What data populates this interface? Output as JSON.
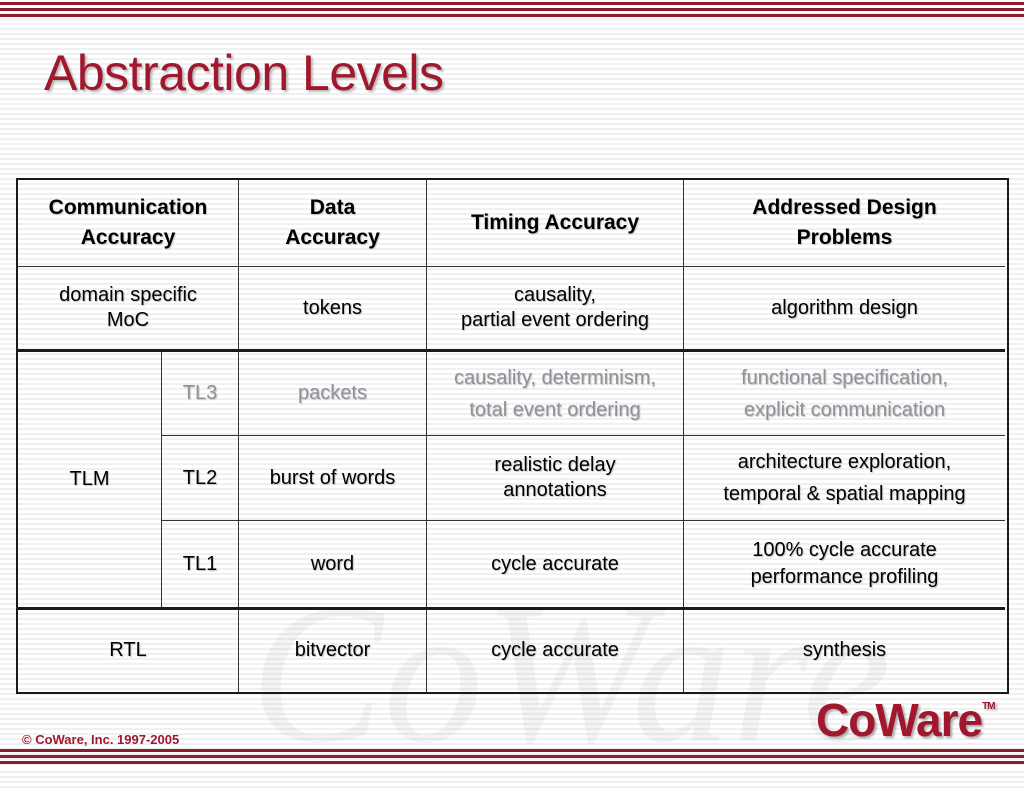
{
  "slide": {
    "title": "Abstraction Levels",
    "copyright": "© CoWare, Inc. 1997-2005",
    "logo": "CoWare",
    "logo_tm": "TM"
  },
  "table": {
    "headers": {
      "communication": "Communication Accuracy",
      "data": "Data Accuracy",
      "timing": "Timing Accuracy",
      "problems": "Addressed Design Problems"
    },
    "rows": {
      "moc": {
        "communication": "domain specific MoC",
        "data": "tokens",
        "timing_line1": "causality,",
        "timing_line2": "partial event ordering",
        "problems": "algorithm design"
      },
      "tlm_group_label": "TLM",
      "tl3": {
        "level": "TL3",
        "data": "packets",
        "timing_line1": "causality, determinism,",
        "timing_line2": "total event ordering",
        "problems_line1": "functional specification,",
        "problems_line2": "explicit communication"
      },
      "tl2": {
        "level": "TL2",
        "data": "burst of words",
        "timing_line1": "realistic delay",
        "timing_line2": "annotations",
        "problems_line1": "architecture exploration,",
        "problems_line2": "temporal & spatial mapping"
      },
      "tl1": {
        "level": "TL1",
        "data": "word",
        "timing": "cycle accurate",
        "problems_line1": "100% cycle accurate",
        "problems_line2": "performance profiling"
      },
      "rtl": {
        "communication": "RTL",
        "data": "bitvector",
        "timing": "cycle accurate",
        "problems": "synthesis"
      }
    }
  },
  "colors": {
    "accent": "#a0172e",
    "grey_text": "#8f9298"
  }
}
